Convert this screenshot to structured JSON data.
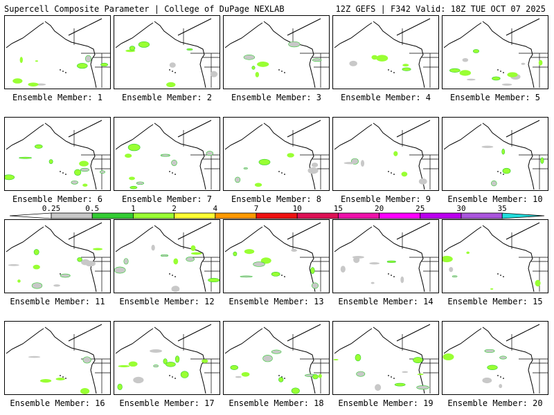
{
  "header": {
    "left_title": "Supercell Composite Parameter | College of DuPage NEXLAB",
    "right_title": "12Z GEFS | F342 Valid: 18Z TUE OCT 07 2025"
  },
  "panels": [
    {
      "label": "Ensemble Member: 1"
    },
    {
      "label": "Ensemble Member: 2"
    },
    {
      "label": "Ensemble Member: 3"
    },
    {
      "label": "Ensemble Member: 4"
    },
    {
      "label": "Ensemble Member: 5"
    },
    {
      "label": "Ensemble Member: 6"
    },
    {
      "label": "Ensemble Member: 7"
    },
    {
      "label": "Ensemble Member: 8"
    },
    {
      "label": "Ensemble Member: 9"
    },
    {
      "label": "Ensemble Member: 10"
    },
    {
      "label": "Ensemble Member: 11"
    },
    {
      "label": "Ensemble Member: 12"
    },
    {
      "label": "Ensemble Member: 13"
    },
    {
      "label": "Ensemble Member: 14"
    },
    {
      "label": "Ensemble Member: 15"
    },
    {
      "label": "Ensemble Member: 16"
    },
    {
      "label": "Ensemble Member: 17"
    },
    {
      "label": "Ensemble Member: 18"
    },
    {
      "label": "Ensemble Member: 19"
    },
    {
      "label": "Ensemble Member: 20"
    }
  ],
  "colorbar": {
    "ticks": [
      "0.25",
      "0.5",
      "1",
      "2",
      "4",
      "7",
      "10",
      "15",
      "20",
      "25",
      "30",
      "35"
    ],
    "colors": [
      "#c8c8c8",
      "#33cc33",
      "#99ff33",
      "#ffff33",
      "#ff9900",
      "#ee1111",
      "#dd1155",
      "#ee11aa",
      "#ff00ff",
      "#bb00ee",
      "#aa55dd",
      "#22dddd"
    ]
  }
}
